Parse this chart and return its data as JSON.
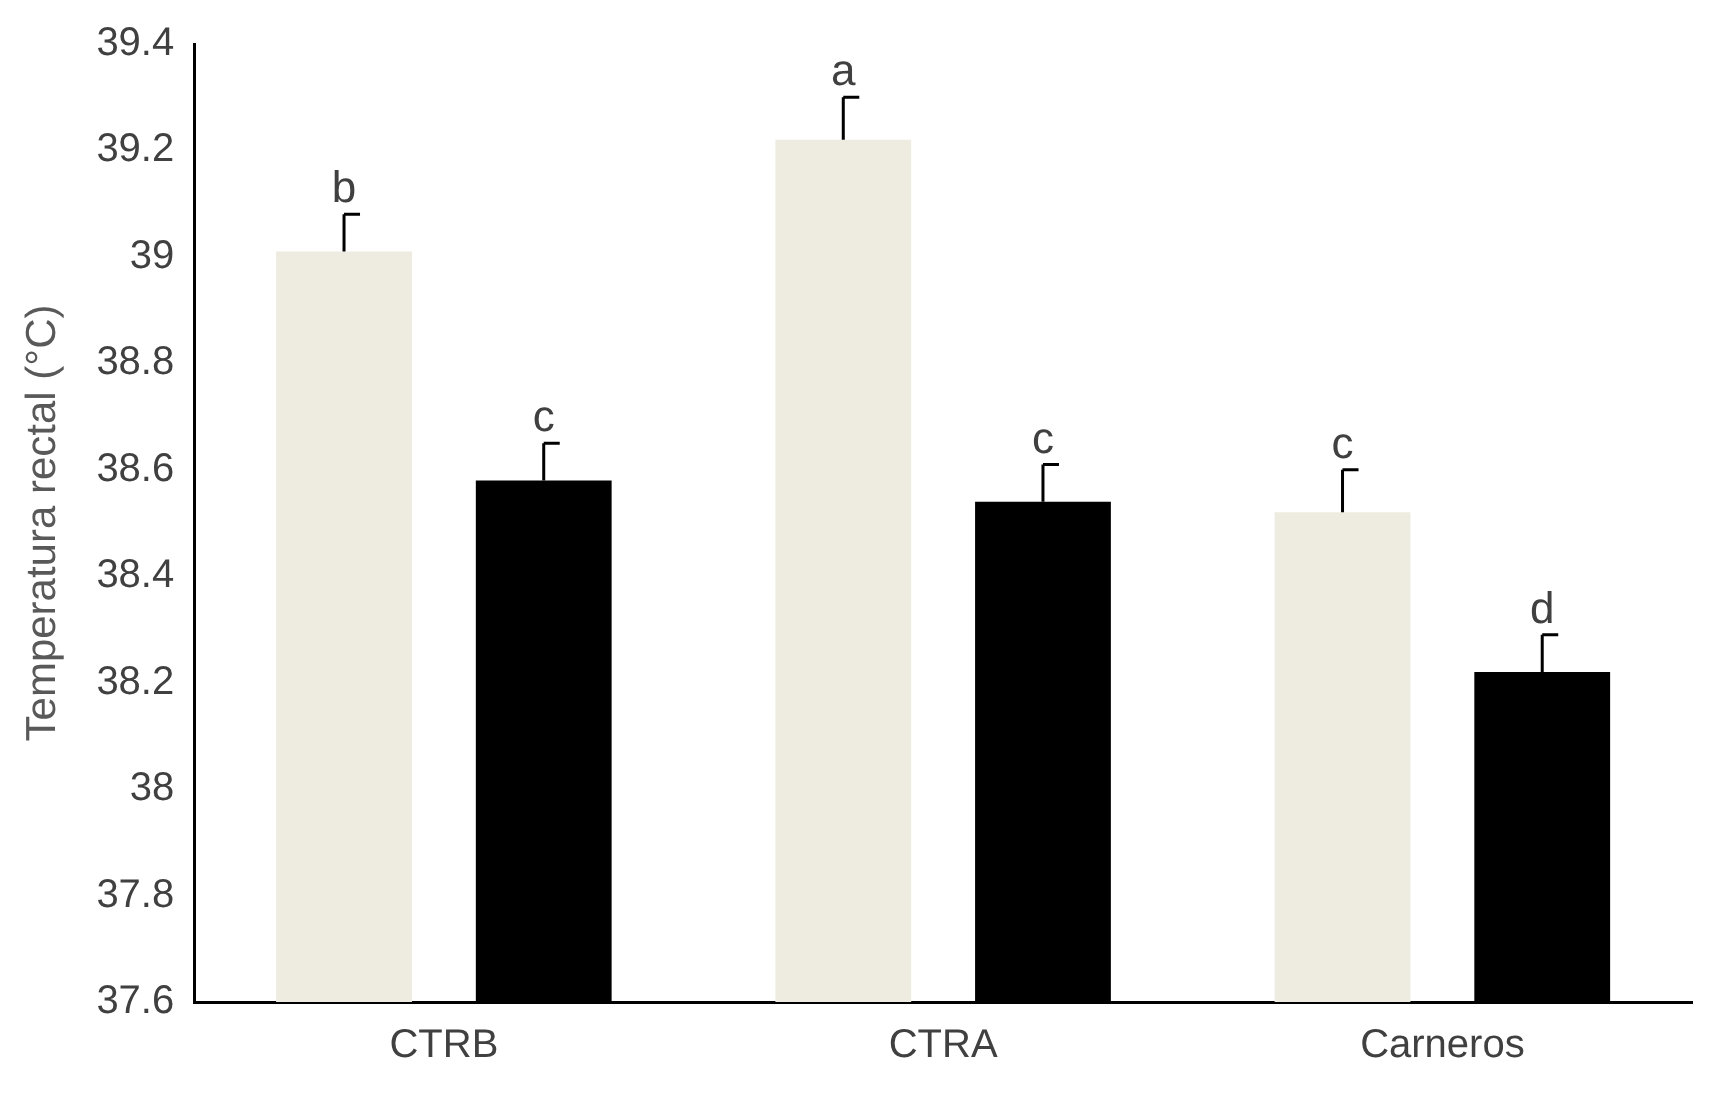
{
  "chart_data": {
    "type": "bar",
    "ylabel": "Temperatura rectal (°C)",
    "categories": [
      "CTRB",
      "CTRA",
      "Carneros"
    ],
    "series": [
      {
        "color": "#eeece1",
        "values": [
          39.01,
          39.22,
          38.52
        ],
        "errors": [
          0.07,
          0.08,
          0.08
        ],
        "value_labels": [
          "b",
          "a",
          "c"
        ]
      },
      {
        "color": "#000000",
        "values": [
          38.58,
          38.54,
          38.22
        ],
        "errors": [
          0.07,
          0.07,
          0.07
        ],
        "value_labels": [
          "c",
          "c",
          "d"
        ]
      }
    ],
    "ylim": [
      37.6,
      39.4
    ],
    "yticks": [
      37.6,
      37.8,
      38,
      38.2,
      38.4,
      38.6,
      38.8,
      39,
      39.2,
      39.4
    ],
    "grid": false,
    "legend": false
  }
}
